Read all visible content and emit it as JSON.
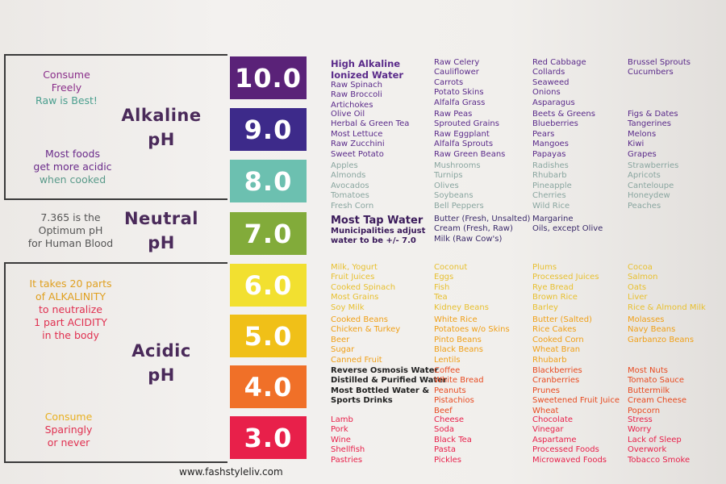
{
  "left": {
    "alkaline_title": [
      "Alkaline",
      "pH"
    ],
    "neutral_title": [
      "Neutral",
      "pH"
    ],
    "acidic_title": [
      "Acidic",
      "pH"
    ],
    "note1": [
      {
        "text": "Consume",
        "color": "#8a2e8a"
      },
      {
        "text": "Freely",
        "color": "#8a2e8a"
      },
      {
        "text": "Raw is Best!",
        "color": "#4a9e8e"
      }
    ],
    "note2": [
      {
        "text": "Most foods",
        "color": "#6a2a8a"
      },
      {
        "text": "get more acidic",
        "color": "#6a2a8a"
      },
      {
        "text": "when cooked",
        "color": "#5a9a8a"
      }
    ],
    "note3": [
      {
        "text": "7.365 is the",
        "color": "#555555"
      },
      {
        "text": "Optimum pH",
        "color": "#555555"
      },
      {
        "text": "for Human Blood",
        "color": "#555555"
      }
    ],
    "note4": [
      {
        "text": "It takes 20 parts",
        "color": "#e0a020"
      },
      {
        "text": "of ALKALINITY",
        "color": "#e0a020"
      },
      {
        "text": "to neutralize",
        "color": "#e03050"
      },
      {
        "text": "1 part ACIDITY",
        "color": "#e03050"
      },
      {
        "text": "in the body",
        "color": "#e03050"
      }
    ],
    "note5": [
      {
        "text": "Consume",
        "color": "#e8b020"
      },
      {
        "text": "Sparingly",
        "color": "#e03050"
      },
      {
        "text": "or never",
        "color": "#e03050"
      }
    ]
  },
  "levels": [
    {
      "ph": "10.0",
      "color": "#5a2278"
    },
    {
      "ph": "9.0",
      "color": "#3d2a8a"
    },
    {
      "ph": "8.0",
      "color": "#6cc0b0"
    },
    {
      "ph": "7.0",
      "color": "#82ab3a"
    },
    {
      "ph": "6.0",
      "color": "#f2e030"
    },
    {
      "ph": "5.0",
      "color": "#f0c018"
    },
    {
      "ph": "4.0",
      "color": "#f07028"
    },
    {
      "ph": "3.0",
      "color": "#e8204a"
    }
  ],
  "rows": [
    {
      "color": "#5a2a8a",
      "cols": [
        [
          "High Alkaline",
          "Ionized Water",
          "Raw Spinach",
          "Raw Broccoli",
          "Artichokes"
        ],
        [
          "Raw Celery",
          "Cauliflower",
          "Carrots",
          "Potato Skins",
          "Alfalfa Grass"
        ],
        [
          "Red Cabbage",
          "Collards",
          "Seaweed",
          "Onions",
          "Asparagus"
        ],
        [
          "Brussel Sprouts",
          "Cucumbers"
        ]
      ]
    },
    {
      "color": "#5a2a8a",
      "cols": [
        [
          "Olive Oil",
          "Herbal & Green Tea",
          "Most Lettuce",
          "Raw Zucchini",
          "Sweet Potato"
        ],
        [
          "Raw Peas",
          "Sprouted Grains",
          "Raw Eggplant",
          "Alfalfa Sprouts",
          "Raw Green Beans"
        ],
        [
          "Beets & Greens",
          "Blueberries",
          "Pears",
          "Mangoes",
          "Papayas"
        ],
        [
          "Figs & Dates",
          "Tangerines",
          "Melons",
          "Kiwi",
          "Grapes"
        ]
      ]
    },
    {
      "color": "#8aa6a0",
      "cols": [
        [
          "Apples",
          "Almonds",
          "Avocados",
          "Tomatoes",
          "Fresh Corn"
        ],
        [
          "Mushrooms",
          "Turnips",
          "Olives",
          "Soybeans",
          "Bell Peppers"
        ],
        [
          "Radishes",
          "Rhubarb",
          "Pineapple",
          "Cherries",
          "Wild Rice"
        ],
        [
          "Strawberries",
          "Apricots",
          "Canteloupe",
          "Honeydew",
          "Peaches"
        ]
      ]
    },
    {
      "color": "#3a2a6a",
      "cols": [
        [
          "Most Tap Water",
          "Municipalities adjust",
          "water to be +/- 7.0"
        ],
        [
          "Butter (Fresh, Unsalted)",
          "Cream (Fresh, Raw)",
          "Milk (Raw Cow's)"
        ],
        [
          "Margarine",
          "Oils, except Olive"
        ],
        []
      ]
    },
    {
      "color": "#e8c030",
      "cols": [
        [
          "Milk, Yogurt",
          "Fruit Juices",
          "Cooked Spinach",
          "Most Grains",
          "Soy Milk"
        ],
        [
          "Coconut",
          "Eggs",
          "Fish",
          "Tea",
          "Kidney Beans"
        ],
        [
          "Plums",
          "Processed Juices",
          "Rye Bread",
          "Brown Rice",
          "Barley"
        ],
        [
          "Cocoa",
          "Salmon",
          "Oats",
          "Liver",
          "Rice & Almond Milk"
        ]
      ]
    },
    {
      "color": "#f0a018",
      "cols": [
        [
          "Cooked Beans",
          "Chicken & Turkey",
          "Beer",
          "Sugar",
          "Canned Fruit"
        ],
        [
          "White Rice",
          "Potatoes w/o Skins",
          "Pinto Beans",
          "Black Beans",
          "Lentils"
        ],
        [
          "Butter (Salted)",
          "Rice Cakes",
          "Cooked Corn",
          "Wheat Bran",
          "Rhubarb"
        ],
        [
          "Molasses",
          "Navy Beans",
          "Garbanzo Beans"
        ]
      ]
    },
    {
      "color": "#e84a20",
      "cols": [
        [
          "Reverse Osmosis Water",
          "Distilled & Purified Water",
          "Most Bottled Water &",
          "Sports Drinks"
        ],
        [
          "Coffee",
          "White Bread",
          "Peanuts",
          "Pistachios",
          "Beef"
        ],
        [
          "Blackberries",
          "Cranberries",
          "Prunes",
          "Sweetened Fruit Juice",
          "Wheat"
        ],
        [
          "Most Nuts",
          "Tomato Sauce",
          "Buttermilk",
          "Cream Cheese",
          "Popcorn"
        ]
      ]
    },
    {
      "color": "#e8204a",
      "cols": [
        [
          "Lamb",
          "Pork",
          "Wine",
          "Shellfish",
          "Pastries"
        ],
        [
          "Cheese",
          "Soda",
          "Black Tea",
          "Pasta",
          "Pickles"
        ],
        [
          "Chocolate",
          "Vinegar",
          "Aspartame",
          "Processed Foods",
          "Microwaved Foods"
        ],
        [
          "Stress",
          "Worry",
          "Lack of Sleep",
          "Overwork",
          "Tobacco Smoke"
        ]
      ]
    }
  ],
  "footer": "www.fashstyleliv.com"
}
